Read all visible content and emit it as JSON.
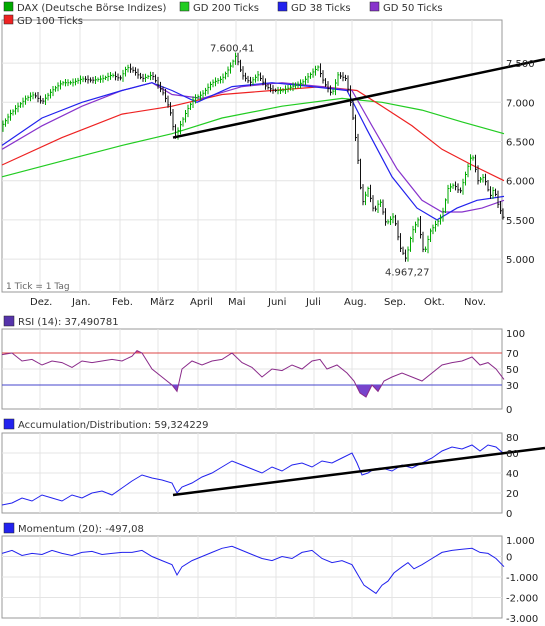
{
  "legend": [
    {
      "label": "DAX (Deutsche Börse Indizes)",
      "color": "#00aa00",
      "kind": "ohlc"
    },
    {
      "label": "GD 200 Ticks",
      "color": "#22cc22",
      "kind": "line"
    },
    {
      "label": "GD 38 Ticks",
      "color": "#2222ee",
      "kind": "line"
    },
    {
      "label": "GD 50 Ticks",
      "color": "#8833cc",
      "kind": "line"
    },
    {
      "label": "GD 100 Ticks",
      "color": "#ee2222",
      "kind": "line"
    }
  ],
  "note": "1 Tick = 1 Tag",
  "months": [
    "Dez.",
    "Jan.",
    "Feb.",
    "März",
    "April",
    "Mai",
    "Juni",
    "Juli",
    "Aug.",
    "Sep.",
    "Okt.",
    "Nov."
  ],
  "rsi_title": "RSI (14): 37,490781",
  "ad_title": "Accumulation/Distribution: 59,324229",
  "mom_title": "Momentum (20): -497,08",
  "chart_data": [
    {
      "type": "line",
      "name": "price",
      "ylim": [
        4580,
        8050
      ],
      "yticks": [
        "7.500",
        "7.000",
        "6.500",
        "6.000",
        "5.500",
        "5.000"
      ],
      "ytick_values": [
        7500,
        7000,
        6500,
        6000,
        5500,
        5000
      ],
      "annotations": [
        {
          "text": "7.600,41",
          "x": "Mai",
          "y": 7600
        },
        {
          "text": "4.967,27",
          "x": "Sep.",
          "y": 4967
        }
      ],
      "price_points": [
        [
          0,
          6700
        ],
        [
          8,
          6850
        ],
        [
          16,
          6950
        ],
        [
          24,
          7050
        ],
        [
          32,
          7100
        ],
        [
          40,
          7000
        ],
        [
          50,
          7150
        ],
        [
          60,
          7250
        ],
        [
          70,
          7250
        ],
        [
          80,
          7300
        ],
        [
          90,
          7280
        ],
        [
          100,
          7300
        ],
        [
          110,
          7350
        ],
        [
          118,
          7300
        ],
        [
          125,
          7450
        ],
        [
          132,
          7400
        ],
        [
          140,
          7300
        ],
        [
          150,
          7350
        ],
        [
          157,
          7200
        ],
        [
          162,
          7100
        ],
        [
          168,
          6900
        ],
        [
          173,
          6550
        ],
        [
          178,
          6700
        ],
        [
          185,
          6900
        ],
        [
          192,
          7050
        ],
        [
          200,
          7100
        ],
        [
          210,
          7250
        ],
        [
          220,
          7300
        ],
        [
          228,
          7450
        ],
        [
          234,
          7600
        ],
        [
          240,
          7350
        ],
        [
          248,
          7250
        ],
        [
          256,
          7350
        ],
        [
          264,
          7200
        ],
        [
          272,
          7150
        ],
        [
          280,
          7150
        ],
        [
          290,
          7200
        ],
        [
          300,
          7250
        ],
        [
          308,
          7350
        ],
        [
          316,
          7450
        ],
        [
          322,
          7250
        ],
        [
          330,
          7100
        ],
        [
          336,
          7350
        ],
        [
          344,
          7300
        ],
        [
          350,
          6900
        ],
        [
          355,
          6400
        ],
        [
          360,
          5700
        ],
        [
          366,
          5900
        ],
        [
          372,
          5600
        ],
        [
          378,
          5750
        ],
        [
          384,
          5450
        ],
        [
          392,
          5550
        ],
        [
          398,
          5150
        ],
        [
          404,
          5000
        ],
        [
          410,
          5350
        ],
        [
          416,
          5500
        ],
        [
          422,
          5050
        ],
        [
          428,
          5350
        ],
        [
          434,
          5450
        ],
        [
          440,
          5550
        ],
        [
          446,
          5900
        ],
        [
          452,
          5950
        ],
        [
          458,
          5850
        ],
        [
          464,
          6100
        ],
        [
          470,
          6350
        ],
        [
          476,
          6000
        ],
        [
          482,
          6050
        ],
        [
          488,
          5800
        ],
        [
          492,
          5900
        ],
        [
          496,
          5700
        ],
        [
          502,
          5500
        ]
      ],
      "series": [
        {
          "name": "GD 200 Ticks",
          "points": [
            [
              0,
              6050
            ],
            [
              60,
              6250
            ],
            [
              120,
              6450
            ],
            [
              170,
              6600
            ],
            [
              220,
              6800
            ],
            [
              280,
              6950
            ],
            [
              340,
              7050
            ],
            [
              380,
              7000
            ],
            [
              420,
              6900
            ],
            [
              460,
              6750
            ],
            [
              502,
              6600
            ]
          ]
        },
        {
          "name": "GD 100 Ticks",
          "points": [
            [
              0,
              6200
            ],
            [
              60,
              6550
            ],
            [
              120,
              6850
            ],
            [
              170,
              6950
            ],
            [
              220,
              7100
            ],
            [
              270,
              7150
            ],
            [
              320,
              7200
            ],
            [
              355,
              7150
            ],
            [
              380,
              6950
            ],
            [
              410,
              6700
            ],
            [
              440,
              6400
            ],
            [
              470,
              6200
            ],
            [
              502,
              6000
            ]
          ]
        },
        {
          "name": "GD 50 Ticks",
          "points": [
            [
              0,
              6400
            ],
            [
              40,
              6700
            ],
            [
              80,
              6950
            ],
            [
              120,
              7150
            ],
            [
              150,
              7250
            ],
            [
              170,
              7100
            ],
            [
              200,
              7050
            ],
            [
              240,
              7200
            ],
            [
              280,
              7250
            ],
            [
              320,
              7200
            ],
            [
              350,
              7150
            ],
            [
              370,
              6700
            ],
            [
              395,
              6150
            ],
            [
              420,
              5750
            ],
            [
              440,
              5600
            ],
            [
              460,
              5600
            ],
            [
              480,
              5650
            ],
            [
              502,
              5750
            ]
          ]
        },
        {
          "name": "GD 38 Ticks",
          "points": [
            [
              0,
              6450
            ],
            [
              40,
              6800
            ],
            [
              80,
              7000
            ],
            [
              120,
              7150
            ],
            [
              150,
              7250
            ],
            [
              170,
              7150
            ],
            [
              195,
              7000
            ],
            [
              230,
              7200
            ],
            [
              270,
              7250
            ],
            [
              310,
              7200
            ],
            [
              345,
              7150
            ],
            [
              365,
              6650
            ],
            [
              390,
              6050
            ],
            [
              415,
              5650
            ],
            [
              435,
              5500
            ],
            [
              455,
              5650
            ],
            [
              475,
              5750
            ],
            [
              502,
              5800
            ]
          ]
        }
      ],
      "trendline": [
        [
          173,
          6550
        ],
        [
          545,
          7550
        ]
      ]
    },
    {
      "type": "line",
      "name": "RSI (14)",
      "ylim": [
        0,
        100
      ],
      "yticks": [
        "100",
        "70",
        "50",
        "30",
        "0"
      ],
      "ytick_values": [
        100,
        70,
        50,
        30,
        0
      ],
      "levels": [
        70,
        30
      ],
      "points": [
        [
          0,
          68
        ],
        [
          10,
          70
        ],
        [
          20,
          60
        ],
        [
          30,
          62
        ],
        [
          40,
          55
        ],
        [
          50,
          60
        ],
        [
          60,
          58
        ],
        [
          70,
          52
        ],
        [
          80,
          60
        ],
        [
          90,
          58
        ],
        [
          100,
          60
        ],
        [
          110,
          62
        ],
        [
          120,
          60
        ],
        [
          130,
          66
        ],
        [
          135,
          73
        ],
        [
          140,
          70
        ],
        [
          150,
          50
        ],
        [
          160,
          40
        ],
        [
          170,
          30
        ],
        [
          175,
          22
        ],
        [
          180,
          50
        ],
        [
          190,
          60
        ],
        [
          200,
          55
        ],
        [
          210,
          60
        ],
        [
          220,
          62
        ],
        [
          230,
          70
        ],
        [
          240,
          58
        ],
        [
          250,
          52
        ],
        [
          260,
          40
        ],
        [
          270,
          50
        ],
        [
          280,
          48
        ],
        [
          290,
          55
        ],
        [
          300,
          50
        ],
        [
          310,
          60
        ],
        [
          318,
          62
        ],
        [
          325,
          50
        ],
        [
          335,
          55
        ],
        [
          345,
          45
        ],
        [
          352,
          35
        ],
        [
          358,
          20
        ],
        [
          364,
          15
        ],
        [
          370,
          30
        ],
        [
          376,
          22
        ],
        [
          382,
          35
        ],
        [
          390,
          40
        ],
        [
          400,
          45
        ],
        [
          410,
          40
        ],
        [
          420,
          35
        ],
        [
          430,
          45
        ],
        [
          440,
          55
        ],
        [
          450,
          58
        ],
        [
          460,
          60
        ],
        [
          470,
          65
        ],
        [
          478,
          55
        ],
        [
          486,
          58
        ],
        [
          494,
          50
        ],
        [
          502,
          37
        ]
      ]
    },
    {
      "type": "line",
      "name": "Accumulation/Distribution",
      "ylim": [
        0,
        80
      ],
      "yticks": [
        "80",
        "60",
        "40",
        "20",
        "0"
      ],
      "ytick_values": [
        80,
        60,
        40,
        20,
        0
      ],
      "points": [
        [
          0,
          8
        ],
        [
          10,
          10
        ],
        [
          20,
          15
        ],
        [
          30,
          12
        ],
        [
          40,
          18
        ],
        [
          50,
          15
        ],
        [
          60,
          12
        ],
        [
          70,
          18
        ],
        [
          80,
          15
        ],
        [
          90,
          20
        ],
        [
          100,
          22
        ],
        [
          110,
          18
        ],
        [
          120,
          25
        ],
        [
          130,
          32
        ],
        [
          140,
          38
        ],
        [
          150,
          35
        ],
        [
          160,
          33
        ],
        [
          170,
          30
        ],
        [
          175,
          20
        ],
        [
          180,
          26
        ],
        [
          190,
          30
        ],
        [
          200,
          36
        ],
        [
          210,
          40
        ],
        [
          220,
          46
        ],
        [
          230,
          52
        ],
        [
          240,
          48
        ],
        [
          250,
          44
        ],
        [
          260,
          40
        ],
        [
          270,
          46
        ],
        [
          280,
          42
        ],
        [
          290,
          48
        ],
        [
          300,
          50
        ],
        [
          310,
          46
        ],
        [
          320,
          52
        ],
        [
          330,
          50
        ],
        [
          340,
          55
        ],
        [
          350,
          60
        ],
        [
          355,
          50
        ],
        [
          360,
          38
        ],
        [
          366,
          40
        ],
        [
          372,
          44
        ],
        [
          380,
          45
        ],
        [
          390,
          42
        ],
        [
          400,
          48
        ],
        [
          410,
          45
        ],
        [
          420,
          50
        ],
        [
          430,
          55
        ],
        [
          440,
          62
        ],
        [
          450,
          66
        ],
        [
          460,
          64
        ],
        [
          470,
          68
        ],
        [
          478,
          62
        ],
        [
          486,
          68
        ],
        [
          494,
          66
        ],
        [
          502,
          59
        ]
      ],
      "trendline": [
        [
          173,
          18
        ],
        [
          545,
          65
        ]
      ]
    },
    {
      "type": "line",
      "name": "Momentum (20)",
      "ylim": [
        -3000,
        1000
      ],
      "yticks": [
        "1.000",
        "0",
        "-1.000",
        "-2.000",
        "-3.000"
      ],
      "ytick_values": [
        1000,
        0,
        -1000,
        -2000,
        -3000
      ],
      "points": [
        [
          0,
          150
        ],
        [
          10,
          300
        ],
        [
          20,
          50
        ],
        [
          30,
          150
        ],
        [
          40,
          100
        ],
        [
          50,
          300
        ],
        [
          60,
          150
        ],
        [
          70,
          50
        ],
        [
          80,
          200
        ],
        [
          90,
          250
        ],
        [
          100,
          100
        ],
        [
          110,
          150
        ],
        [
          120,
          200
        ],
        [
          130,
          200
        ],
        [
          140,
          300
        ],
        [
          150,
          0
        ],
        [
          160,
          -200
        ],
        [
          170,
          -400
        ],
        [
          175,
          -900
        ],
        [
          180,
          -500
        ],
        [
          190,
          -200
        ],
        [
          200,
          0
        ],
        [
          210,
          200
        ],
        [
          220,
          400
        ],
        [
          230,
          500
        ],
        [
          240,
          300
        ],
        [
          250,
          100
        ],
        [
          260,
          -100
        ],
        [
          270,
          -200
        ],
        [
          280,
          0
        ],
        [
          290,
          -100
        ],
        [
          300,
          200
        ],
        [
          310,
          300
        ],
        [
          320,
          -100
        ],
        [
          330,
          -300
        ],
        [
          340,
          -200
        ],
        [
          350,
          -400
        ],
        [
          356,
          -900
        ],
        [
          362,
          -1400
        ],
        [
          368,
          -1600
        ],
        [
          374,
          -1800
        ],
        [
          380,
          -1400
        ],
        [
          386,
          -1200
        ],
        [
          392,
          -800
        ],
        [
          400,
          -500
        ],
        [
          406,
          -300
        ],
        [
          412,
          -600
        ],
        [
          420,
          -400
        ],
        [
          430,
          -100
        ],
        [
          440,
          200
        ],
        [
          450,
          300
        ],
        [
          460,
          350
        ],
        [
          470,
          400
        ],
        [
          478,
          200
        ],
        [
          486,
          150
        ],
        [
          494,
          -100
        ],
        [
          502,
          -497
        ]
      ]
    }
  ]
}
